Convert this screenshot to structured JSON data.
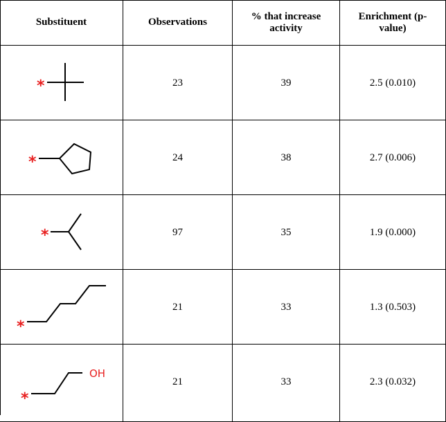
{
  "table": {
    "header": [
      "Substituent",
      "Observations",
      "% that increase activity",
      "Enrichment (p-value)"
    ],
    "rows": [
      {
        "attachment": "*",
        "cells": [
          "23",
          "39",
          "2.5 (0.010)"
        ]
      },
      {
        "attachment": "*",
        "cells": [
          "24",
          "38",
          "2.7 (0.006)"
        ]
      },
      {
        "attachment": "*",
        "cells": [
          "97",
          "35",
          "1.9 (0.000)"
        ]
      },
      {
        "attachment": "*",
        "cells": [
          "21",
          "33",
          "1.3 (0.503)"
        ]
      },
      {
        "attachment": "*",
        "group": "OH",
        "cells": [
          "21",
          "33",
          "2.3 (0.032)"
        ]
      }
    ]
  }
}
